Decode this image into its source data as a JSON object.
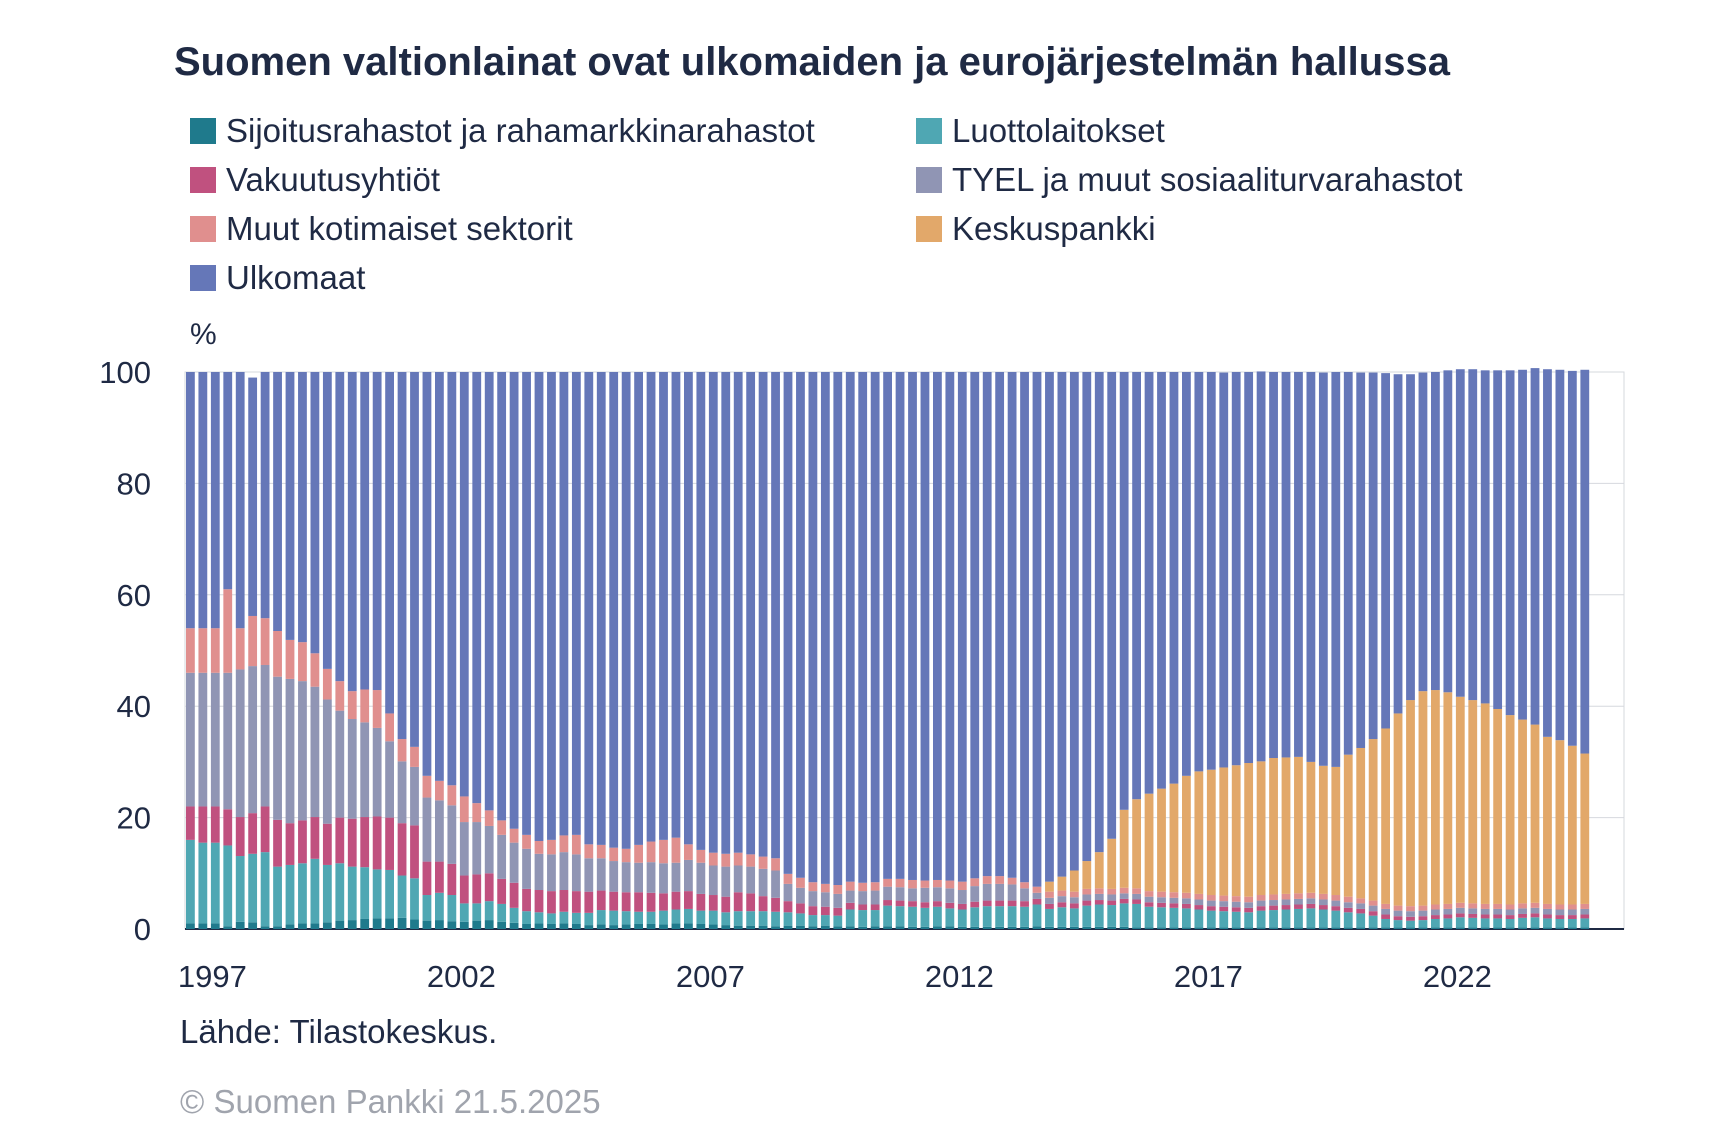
{
  "title": "Suomen valtionlainat ovat ulkomaiden ja eurojärjestelmän hallussa",
  "unit_label": "%",
  "source": "Lähde: Tilastokeskus.",
  "copyright": "© Suomen Pankki 21.5.2025",
  "colors": {
    "sijoitus": "#1f7a8c",
    "luotto": "#4fa7b3",
    "vakuutus": "#c0517f",
    "tyel": "#9095b4",
    "muut": "#e08f8e",
    "keskus": "#e2a86a",
    "ulkomaat": "#6577b8"
  },
  "chart_data": {
    "type": "bar",
    "stacked": true,
    "ylim": [
      0,
      100
    ],
    "yticks": [
      0,
      20,
      40,
      60,
      80,
      100
    ],
    "xtick_labels": [
      "1997",
      "2002",
      "2007",
      "2012",
      "2017",
      "2022"
    ],
    "x_start": "1997 Q1",
    "x_end": "2025 Q1",
    "frequency": "quarterly",
    "grid": true,
    "legend_position": "top",
    "series": [
      {
        "name": "Sijoitusrahastot ja rahamarkkinarahastot",
        "color_key": "sijoitus",
        "values": [
          1.0,
          1.0,
          1.0,
          0.5,
          1.3,
          1.2,
          0.5,
          0.5,
          0.8,
          1.0,
          1.0,
          1.2,
          1.5,
          1.6,
          1.8,
          1.9,
          1.9,
          2.0,
          1.7,
          1.5,
          1.6,
          1.4,
          1.3,
          1.5,
          1.6,
          1.3,
          1.1,
          0.9,
          1.0,
          0.9,
          1.0,
          0.9,
          0.7,
          0.8,
          0.7,
          0.8,
          0.9,
          0.9,
          0.8,
          1.0,
          1.0,
          0.9,
          0.8,
          0.7,
          0.6,
          0.6,
          0.6,
          0.5,
          0.6,
          0.6,
          0.5,
          0.6,
          0.5,
          0.5,
          0.4,
          0.5,
          0.5,
          0.5,
          0.4,
          0.4,
          0.5,
          0.5,
          0.4,
          0.4,
          0.4,
          0.4,
          0.4,
          0.4,
          0.5,
          0.4,
          0.4,
          0.4,
          0.4,
          0.4,
          0.4,
          0.4,
          0.3,
          0.3,
          0.3,
          0.3,
          0.3,
          0.3,
          0.3,
          0.3,
          0.3,
          0.3,
          0.3,
          0.3,
          0.3,
          0.3,
          0.3,
          0.3,
          0.3,
          0.3,
          0.3,
          0.3,
          0.3,
          0.3,
          0.3,
          0.3,
          0.3,
          0.3,
          0.3,
          0.3,
          0.3,
          0.3,
          0.3,
          0.3,
          0.3,
          0.3,
          0.3,
          0.3,
          0.3
        ]
      },
      {
        "name": "Luottolaitokset",
        "color_key": "luotto",
        "values": [
          15.0,
          14.5,
          14.5,
          14.5,
          11.8,
          12.3,
          13.3,
          10.7,
          10.7,
          10.8,
          11.6,
          10.3,
          10.3,
          9.6,
          9.3,
          8.8,
          8.7,
          7.6,
          7.4,
          4.6,
          4.9,
          4.7,
          3.3,
          3.1,
          3.4,
          3.2,
          2.7,
          2.3,
          2.0,
          1.9,
          2.1,
          2.0,
          2.2,
          2.6,
          2.6,
          2.4,
          2.2,
          2.2,
          2.5,
          2.5,
          2.6,
          2.4,
          2.5,
          2.3,
          2.6,
          2.6,
          2.6,
          2.6,
          2.4,
          2.2,
          2.0,
          1.9,
          1.9,
          3.0,
          3.0,
          2.9,
          3.7,
          3.6,
          3.6,
          3.4,
          3.5,
          3.2,
          3.1,
          3.5,
          3.7,
          3.7,
          3.7,
          3.6,
          3.9,
          3.2,
          3.5,
          3.3,
          3.8,
          4.0,
          3.9,
          4.2,
          4.2,
          3.7,
          3.6,
          3.5,
          3.4,
          3.2,
          3.0,
          2.9,
          2.8,
          2.7,
          3.0,
          3.1,
          3.2,
          3.3,
          3.4,
          3.2,
          3.0,
          2.7,
          2.5,
          2.1,
          1.5,
          1.3,
          1.2,
          1.3,
          1.5,
          1.6,
          1.8,
          1.7,
          1.6,
          1.6,
          1.5,
          1.7,
          1.8,
          1.6,
          1.5,
          1.5,
          1.6,
          1.7
        ]
      },
      {
        "name": "Vakuutusyhtiöt",
        "color_key": "vakuutus",
        "values": [
          6.0,
          6.5,
          6.5,
          6.5,
          7.0,
          7.3,
          8.2,
          8.4,
          7.5,
          7.7,
          7.5,
          7.4,
          8.2,
          8.6,
          9.0,
          9.5,
          9.4,
          9.4,
          9.5,
          6.0,
          5.6,
          5.6,
          5.0,
          5.2,
          5.0,
          4.5,
          4.5,
          4.0,
          4.0,
          4.0,
          3.9,
          3.9,
          3.8,
          3.5,
          3.4,
          3.4,
          3.5,
          3.4,
          3.1,
          3.2,
          3.2,
          3.0,
          2.8,
          2.8,
          3.4,
          3.2,
          2.7,
          2.5,
          2.0,
          1.8,
          1.6,
          1.5,
          1.4,
          1.2,
          1.0,
          1.0,
          1.0,
          1.0,
          1.0,
          1.0,
          1.0,
          1.0,
          1.0,
          1.0,
          1.0,
          1.0,
          1.0,
          1.0,
          1.0,
          0.9,
          0.9,
          0.9,
          0.9,
          0.8,
          0.8,
          0.8,
          0.8,
          0.8,
          0.8,
          0.8,
          0.8,
          0.8,
          0.8,
          0.8,
          0.8,
          0.8,
          0.8,
          0.8,
          0.8,
          0.8,
          0.8,
          0.8,
          0.8,
          0.8,
          0.8,
          0.8,
          0.8,
          0.7,
          0.7,
          0.7,
          0.7,
          0.7,
          0.7,
          0.7,
          0.7,
          0.7,
          0.7,
          0.7,
          0.7,
          0.7,
          0.7,
          0.7,
          0.7,
          0.7
        ]
      },
      {
        "name": "TYEL ja muut sosiaaliturvarahastot",
        "color_key": "tyel",
        "values": [
          24.0,
          24.0,
          24.0,
          24.5,
          26.5,
          26.4,
          25.4,
          25.7,
          25.9,
          25.0,
          23.4,
          22.3,
          19.2,
          17.9,
          17.0,
          15.9,
          13.7,
          11.1,
          10.5,
          11.5,
          11.0,
          10.5,
          9.6,
          9.4,
          8.5,
          7.9,
          7.2,
          7.2,
          6.5,
          6.6,
          6.8,
          6.6,
          6.0,
          5.8,
          5.5,
          5.4,
          5.3,
          5.5,
          5.4,
          5.2,
          5.6,
          5.6,
          5.3,
          5.4,
          4.8,
          4.8,
          4.9,
          4.9,
          3.1,
          2.8,
          2.7,
          2.6,
          2.5,
          2.2,
          2.4,
          2.5,
          2.4,
          2.4,
          2.3,
          2.6,
          2.5,
          2.6,
          2.5,
          2.8,
          3.0,
          3.0,
          2.9,
          2.3,
          1.1,
          1.1,
          1.1,
          1.1,
          1.1,
          1.1,
          1.1,
          1.0,
          1.0,
          1.0,
          1.0,
          1.0,
          1.0,
          1.0,
          1.0,
          1.0,
          1.0,
          1.0,
          1.0,
          1.0,
          1.0,
          1.0,
          1.0,
          1.0,
          1.0,
          1.0,
          1.0,
          1.0,
          1.0,
          1.0,
          1.0,
          1.0,
          1.0,
          1.0,
          1.0,
          1.0,
          1.0,
          1.0,
          1.0,
          1.0,
          1.0,
          1.0,
          1.0,
          1.0,
          1.0,
          1.0
        ]
      },
      {
        "name": "Muut kotimaiset sektorit",
        "color_key": "muut",
        "values": [
          8.0,
          8.0,
          8.0,
          15.0,
          7.4,
          9.0,
          8.4,
          8.2,
          7.0,
          7.0,
          6.0,
          5.5,
          5.3,
          5.0,
          5.9,
          6.8,
          5.0,
          4.0,
          3.6,
          3.9,
          3.5,
          3.6,
          4.6,
          3.4,
          2.8,
          2.6,
          2.5,
          2.5,
          2.3,
          2.6,
          3.0,
          3.5,
          2.5,
          2.4,
          2.4,
          2.4,
          3.2,
          3.7,
          4.2,
          4.5,
          2.8,
          2.3,
          2.3,
          2.3,
          2.3,
          2.2,
          2.2,
          2.2,
          1.8,
          1.8,
          1.6,
          1.5,
          1.6,
          1.6,
          1.5,
          1.5,
          1.4,
          1.5,
          1.5,
          1.3,
          1.3,
          1.4,
          1.5,
          1.4,
          1.4,
          1.4,
          1.2,
          1.1,
          1.1,
          1.1,
          1.0,
          1.0,
          1.0,
          1.0,
          1.0,
          1.0,
          1.0,
          1.0,
          1.0,
          1.0,
          1.0,
          1.0,
          1.0,
          1.0,
          1.0,
          1.0,
          1.0,
          1.0,
          1.0,
          1.0,
          1.0,
          1.0,
          1.0,
          1.0,
          0.9,
          0.9,
          0.9,
          0.9,
          0.9,
          0.9,
          0.9,
          0.9,
          0.9,
          0.9,
          0.9,
          0.9,
          0.9,
          0.9,
          0.9,
          0.9,
          0.9,
          0.9,
          0.9,
          0.9
        ]
      },
      {
        "name": "Keskuspankki",
        "color_key": "keskus",
        "values": [
          0,
          0,
          0,
          0,
          0,
          0,
          0,
          0,
          0,
          0,
          0,
          0,
          0,
          0,
          0,
          0,
          0,
          0,
          0,
          0,
          0,
          0,
          0,
          0,
          0,
          0,
          0,
          0,
          0,
          0,
          0,
          0,
          0,
          0,
          0,
          0,
          0,
          0,
          0,
          0,
          0,
          0,
          0,
          0,
          0,
          0,
          0,
          0,
          0,
          0,
          0,
          0,
          0,
          0,
          0,
          0,
          0,
          0,
          0,
          0,
          0,
          0,
          0,
          0,
          0,
          0,
          0,
          0,
          0,
          1.8,
          2.5,
          3.8,
          5.0,
          6.5,
          9.0,
          14.0,
          16.0,
          17.5,
          18.5,
          19.5,
          21.0,
          22.0,
          22.5,
          23.0,
          23.5,
          24.0,
          24.0,
          24.5,
          24.5,
          24.5,
          23.5,
          23.0,
          23.0,
          25.5,
          27.0,
          29.0,
          31.5,
          34.5,
          37.0,
          38.5,
          38.5,
          38.0,
          37.0,
          36.5,
          36.0,
          35.0,
          34.0,
          33.0,
          32.0,
          30.0,
          29.5,
          28.5,
          27.0,
          26.0
        ]
      },
      {
        "name": "Ulkomaat",
        "color_key": "ulkomaat",
        "values": [
          46.0,
          46.0,
          46.0,
          39.0,
          46.0,
          42.8,
          44.2,
          46.5,
          48.1,
          48.5,
          50.5,
          53.3,
          55.5,
          57.3,
          57.0,
          57.1,
          61.3,
          65.9,
          67.3,
          72.5,
          73.4,
          74.2,
          76.2,
          77.4,
          78.7,
          80.5,
          82.0,
          83.1,
          84.2,
          84.0,
          83.2,
          83.1,
          84.8,
          84.9,
          85.4,
          85.6,
          84.9,
          84.3,
          84.0,
          83.6,
          84.8,
          85.8,
          86.3,
          86.5,
          86.3,
          86.6,
          87.0,
          87.3,
          90.1,
          90.8,
          91.6,
          91.9,
          92.1,
          91.5,
          91.7,
          91.6,
          91.0,
          91.0,
          91.2,
          91.3,
          91.2,
          91.3,
          91.5,
          90.9,
          90.5,
          90.5,
          90.8,
          91.6,
          92.4,
          91.5,
          90.6,
          89.5,
          87.8,
          86.2,
          83.8,
          78.6,
          76.7,
          75.7,
          74.8,
          73.9,
          72.5,
          71.7,
          71.4,
          70.9,
          70.6,
          70.2,
          70.0,
          69.3,
          69.2,
          69.1,
          70.0,
          70.6,
          70.9,
          68.7,
          67.4,
          65.8,
          63.8,
          60.9,
          58.5,
          57.2,
          57.1,
          57.8,
          58.8,
          59.4,
          59.8,
          60.8,
          61.9,
          62.8,
          64.0,
          66.0,
          66.5,
          67.3,
          68.9,
          69.9
        ]
      }
    ]
  }
}
